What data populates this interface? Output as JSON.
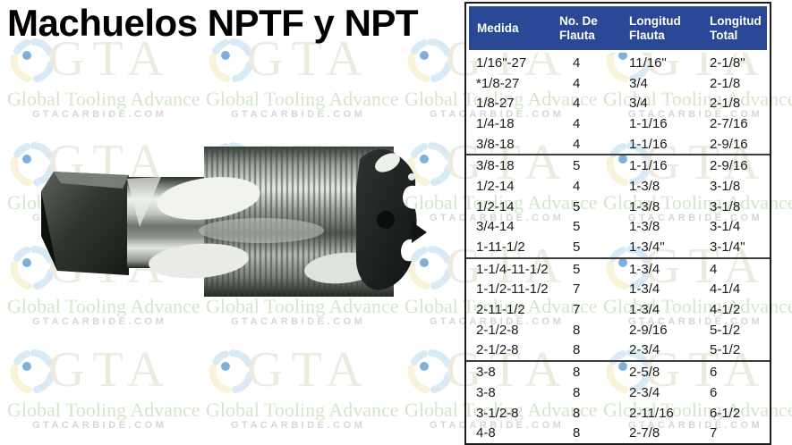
{
  "title": "Machuelos NPTF y NPT",
  "watermark": {
    "monogram": "GTA",
    "tagline": "Global Tooling Advance",
    "site": "GTACARBIDE.COM",
    "colors": {
      "monogram": "#edebe0",
      "tagline": "#d3e6cb",
      "site": "#d6d6d6",
      "logo_blue": "#d9eaf7",
      "logo_yellow": "#f8f3d8",
      "logo_dot": "#7fb0dc"
    }
  },
  "product_image": {
    "alt": "Machuelo (pipe tap) NPT"
  },
  "table": {
    "header_bg": "#2b4897",
    "columns": [
      [
        "Medida",
        ""
      ],
      [
        "No. De",
        "Flauta"
      ],
      [
        "Longitud",
        "Flauta"
      ],
      [
        "Longitud",
        "Total"
      ]
    ],
    "rows": [
      [
        "1/16\"-27",
        "4",
        "11/16\"",
        "2-1/8\""
      ],
      [
        "*1/8-27",
        "4",
        "3/4",
        "2-1/8"
      ],
      [
        "1/8-27",
        "4",
        "3/4",
        "2-1/8"
      ],
      [
        "1/4-18",
        "4",
        "1-1/16",
        "2-7/16"
      ],
      [
        "3/8-18",
        "4",
        "1-1/16",
        "2-9/16"
      ],
      [
        "3/8-18",
        "5",
        "1-1/16",
        "2-9/16"
      ],
      [
        "1/2-14",
        "4",
        "1-3/8",
        "3-1/8"
      ],
      [
        "1/2-14",
        "5",
        "1-3/8",
        "3-1/8"
      ],
      [
        "3/4-14",
        "5",
        "1-3/8",
        "3-1/4"
      ],
      [
        "1-11-1/2",
        "5",
        "1-3/4\"",
        "3-1/4\""
      ],
      [
        "1-1/4-11-1/2",
        "5",
        "1-3/4",
        "4"
      ],
      [
        "1-1/2-11-1/2",
        "7",
        "1-3/4",
        "4-1/4"
      ],
      [
        "2-11-1/2",
        "7",
        "1-3/4",
        "4-1/2"
      ],
      [
        "2-1/2-8",
        "8",
        "2-9/16",
        "5-1/2"
      ],
      [
        "2-1/2-8",
        "8",
        "2-3/4",
        "5-1/2"
      ],
      [
        "3-8",
        "8",
        "2-5/8",
        "6"
      ],
      [
        "3-8",
        "8",
        "2-3/4",
        "6"
      ],
      [
        "3-1/2-8",
        "8",
        "2-11/16",
        "6-1/2"
      ],
      [
        "4-8",
        "8",
        "2-7/8",
        "7"
      ]
    ],
    "group_breaks": [
      5,
      10,
      15
    ]
  }
}
